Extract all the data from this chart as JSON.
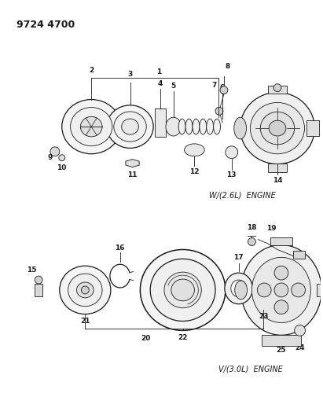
{
  "title": "9724 4700",
  "bg_color": "#ffffff",
  "line_color": "#1a1a1a",
  "title_fontsize": 9,
  "label_fontsize": 6.5,
  "engine1_label": "W/(2.6L)  ENGINE",
  "engine2_label": "V/(3.0L)  ENGINE"
}
